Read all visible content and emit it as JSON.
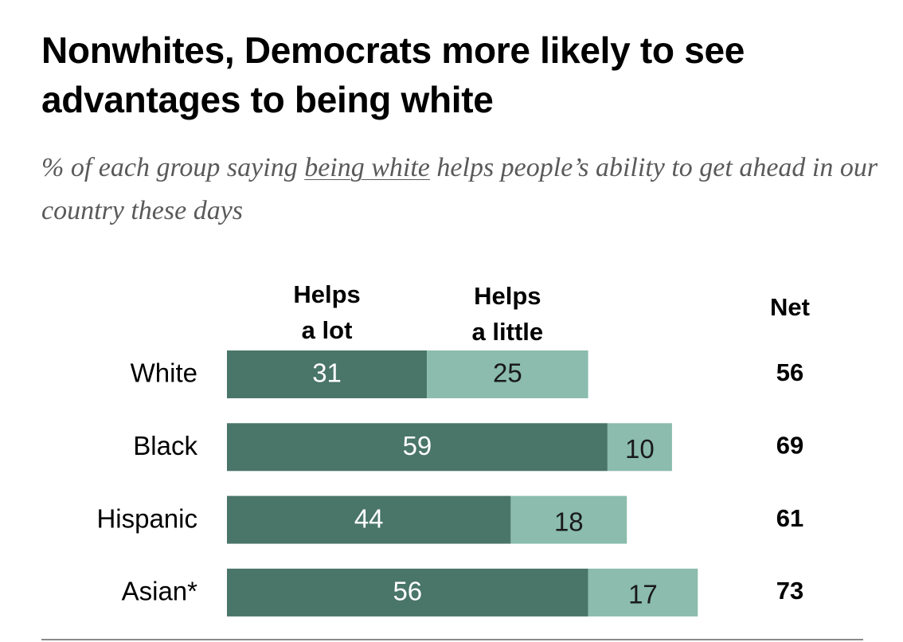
{
  "chart_data": {
    "type": "bar",
    "orientation": "horizontal",
    "stacked": true,
    "title": "Nonwhites, Democrats more likely to see advantages to being white",
    "subtitle": {
      "before": "% of each group saying ",
      "underlined": "being white",
      "after": " helps people’s ability to get ahead in our country these days"
    },
    "categories": [
      "White",
      "Black",
      "Hispanic",
      "Asian*"
    ],
    "series": [
      {
        "name_lines": [
          "Helps",
          "a lot"
        ],
        "color": "#4a7569",
        "values": [
          31,
          59,
          44,
          56
        ]
      },
      {
        "name_lines": [
          "Helps",
          "a little"
        ],
        "color": "#8bbcad",
        "values": [
          25,
          10,
          18,
          17
        ]
      }
    ],
    "net": {
      "label": "Net",
      "values": [
        56,
        69,
        61,
        73
      ]
    },
    "xlim": [
      0,
      100
    ],
    "grid": false
  }
}
